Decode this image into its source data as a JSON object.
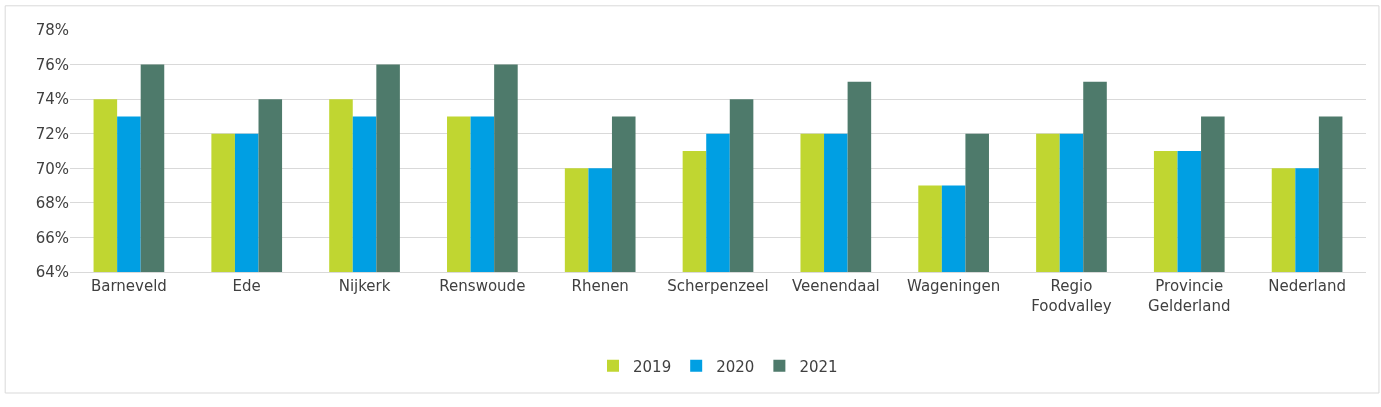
{
  "chart_data": {
    "type": "bar",
    "categories": [
      "Barneveld",
      "Ede",
      "Nijkerk",
      "Renswoude",
      "Rhenen",
      "Scherpenzeel",
      "Veenendaal",
      "Wageningen",
      "Regio\nFoodvalley",
      "Provincie\nGelderland",
      "Nederland"
    ],
    "series": [
      {
        "name": "2019",
        "color": "#c0d631",
        "values": [
          74,
          72,
          74,
          73,
          70,
          71,
          72,
          69,
          72,
          71,
          70
        ]
      },
      {
        "name": "2020",
        "color": "#009fe3",
        "values": [
          73,
          72,
          73,
          73,
          70,
          72,
          72,
          69,
          72,
          71,
          70
        ]
      },
      {
        "name": "2021",
        "color": "#4e7a6b",
        "values": [
          76,
          74,
          76,
          76,
          73,
          74,
          75,
          72,
          75,
          73,
          73
        ]
      }
    ],
    "ylim": [
      64,
      78
    ],
    "yticks": [
      {
        "value": 64,
        "label": "64%"
      },
      {
        "value": 66,
        "label": "66%"
      },
      {
        "value": 68,
        "label": "68%"
      },
      {
        "value": 70,
        "label": "70%"
      },
      {
        "value": 72,
        "label": "72%"
      },
      {
        "value": 74,
        "label": "74%"
      },
      {
        "value": 76,
        "label": "76%"
      },
      {
        "value": 78,
        "label": "78%"
      }
    ],
    "grid": "y",
    "legend": "bottom"
  }
}
